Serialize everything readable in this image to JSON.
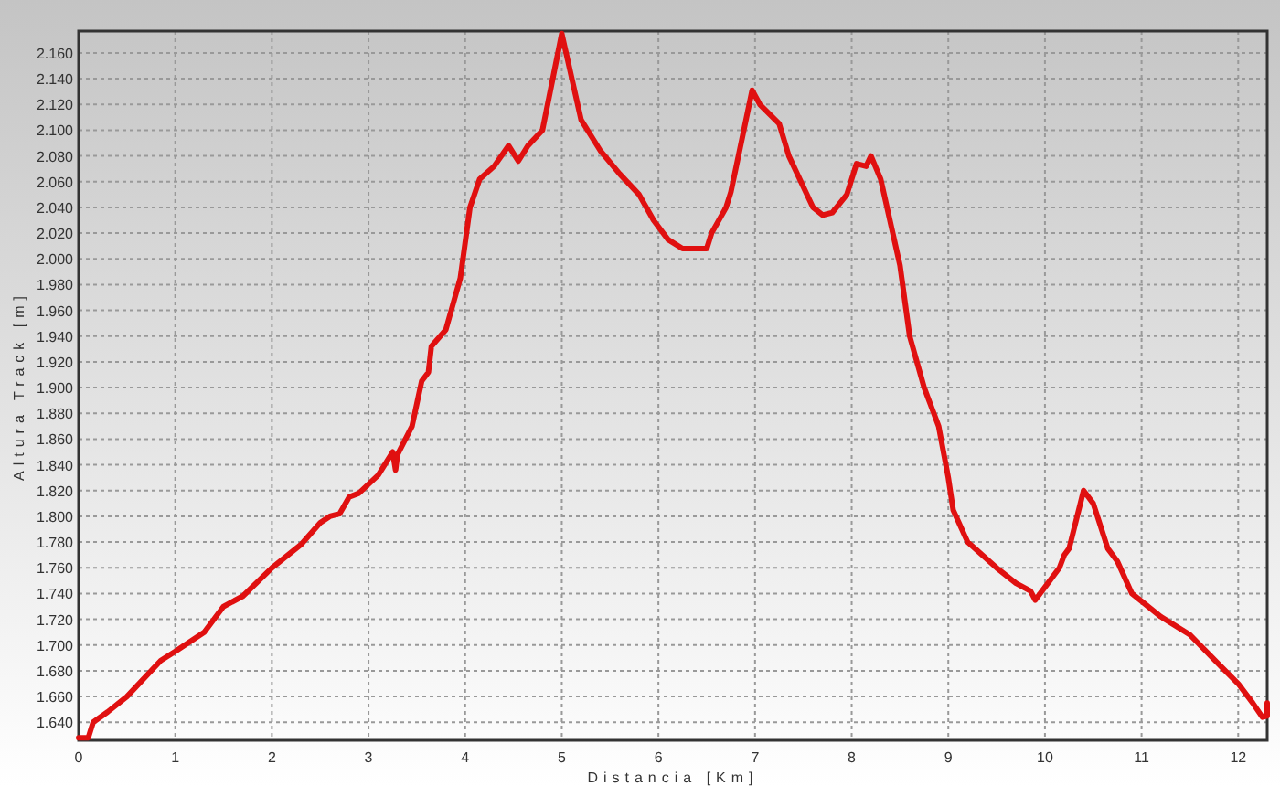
{
  "chart_data": {
    "type": "line",
    "xlabel": "Distancia [Km]",
    "ylabel": "Altura Track [m]",
    "xlim": [
      0,
      12.3
    ],
    "ylim": [
      1626,
      2177
    ],
    "xticks": [
      0,
      1,
      2,
      3,
      4,
      5,
      6,
      7,
      8,
      9,
      10,
      11,
      12
    ],
    "yticks": [
      {
        "value": 1640,
        "label": "1.640"
      },
      {
        "value": 1660,
        "label": "1.660"
      },
      {
        "value": 1680,
        "label": "1.680"
      },
      {
        "value": 1700,
        "label": "1.700"
      },
      {
        "value": 1720,
        "label": "1.720"
      },
      {
        "value": 1740,
        "label": "1.740"
      },
      {
        "value": 1760,
        "label": "1.760"
      },
      {
        "value": 1780,
        "label": "1.780"
      },
      {
        "value": 1800,
        "label": "1.800"
      },
      {
        "value": 1820,
        "label": "1.820"
      },
      {
        "value": 1840,
        "label": "1.840"
      },
      {
        "value": 1860,
        "label": "1.860"
      },
      {
        "value": 1880,
        "label": "1.880"
      },
      {
        "value": 1900,
        "label": "1.900"
      },
      {
        "value": 1920,
        "label": "1.920"
      },
      {
        "value": 1940,
        "label": "1.940"
      },
      {
        "value": 1960,
        "label": "1.960"
      },
      {
        "value": 1980,
        "label": "1.980"
      },
      {
        "value": 2000,
        "label": "2.000"
      },
      {
        "value": 2020,
        "label": "2.020"
      },
      {
        "value": 2040,
        "label": "2.040"
      },
      {
        "value": 2060,
        "label": "2.060"
      },
      {
        "value": 2080,
        "label": "2.080"
      },
      {
        "value": 2100,
        "label": "2.100"
      },
      {
        "value": 2120,
        "label": "2.120"
      },
      {
        "value": 2140,
        "label": "2.140"
      },
      {
        "value": 2160,
        "label": "2.160"
      }
    ],
    "grid": true,
    "marker": "none",
    "line_style": "solid",
    "series": [
      {
        "color": "#e01010",
        "x": [
          0,
          0.1,
          0.15,
          0.3,
          0.5,
          0.85,
          1.0,
          1.3,
          1.5,
          1.7,
          2.0,
          2.3,
          2.5,
          2.6,
          2.7,
          2.8,
          2.9,
          3.1,
          3.25,
          3.28,
          3.3,
          3.45,
          3.55,
          3.62,
          3.65,
          3.8,
          3.95,
          4.05,
          4.15,
          4.3,
          4.45,
          4.55,
          4.65,
          4.8,
          5.0,
          5.2,
          5.4,
          5.6,
          5.8,
          5.95,
          6.1,
          6.25,
          6.5,
          6.55,
          6.7,
          6.75,
          6.97,
          7.05,
          7.25,
          7.35,
          7.6,
          7.7,
          7.8,
          7.95,
          8.05,
          8.15,
          8.2,
          8.3,
          8.5,
          8.6,
          8.75,
          8.9,
          9.0,
          9.05,
          9.2,
          9.5,
          9.7,
          9.85,
          9.9,
          10.05,
          10.15,
          10.2,
          10.25,
          10.4,
          10.5,
          10.65,
          10.75,
          10.9,
          11.2,
          11.5,
          11.8,
          12.0,
          12.15,
          12.25,
          12.3,
          12.3
        ],
        "values": [
          1628,
          1628,
          1640,
          1648,
          1660,
          1688,
          1695,
          1710,
          1730,
          1738,
          1760,
          1778,
          1795,
          1800,
          1802,
          1815,
          1818,
          1832,
          1850,
          1836,
          1848,
          1870,
          1905,
          1912,
          1932,
          1945,
          1985,
          2040,
          2062,
          2072,
          2088,
          2076,
          2088,
          2100,
          2175,
          2108,
          2084,
          2066,
          2050,
          2030,
          2015,
          2008,
          2008,
          2020,
          2040,
          2052,
          2131,
          2120,
          2105,
          2080,
          2040,
          2034,
          2036,
          2050,
          2074,
          2072,
          2080,
          2062,
          1995,
          1940,
          1900,
          1870,
          1830,
          1805,
          1780,
          1760,
          1748,
          1742,
          1735,
          1750,
          1760,
          1770,
          1775,
          1820,
          1810,
          1775,
          1765,
          1740,
          1722,
          1708,
          1685,
          1670,
          1655,
          1644,
          1645,
          1655
        ]
      }
    ]
  }
}
